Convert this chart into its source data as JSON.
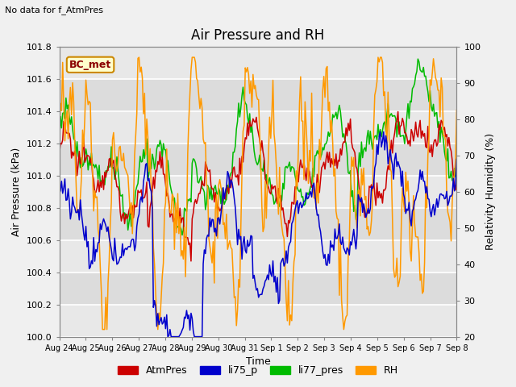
{
  "title": "Air Pressure and RH",
  "subtitle": "No data for f_AtmPres",
  "xlabel": "Time",
  "ylabel_left": "Air Pressure (kPa)",
  "ylabel_right": "Relativity Humidity (%)",
  "annotation": "BC_met",
  "ylim_left": [
    100.0,
    101.8
  ],
  "ylim_right": [
    20,
    100
  ],
  "yticks_left": [
    100.0,
    100.2,
    100.4,
    100.6,
    100.8,
    101.0,
    101.2,
    101.4,
    101.6,
    101.8
  ],
  "yticks_right": [
    20,
    30,
    40,
    50,
    60,
    70,
    80,
    90,
    100
  ],
  "xtick_labels": [
    "Aug 24",
    "Aug 25",
    "Aug 26",
    "Aug 27",
    "Aug 28",
    "Aug 29",
    "Aug 30",
    "Aug 31",
    "Sep 1",
    "Sep 2",
    "Sep 3",
    "Sep 4",
    "Sep 5",
    "Sep 6",
    "Sep 7",
    "Sep 8"
  ],
  "colors": {
    "AtmPres": "#cc0000",
    "li75_p": "#0000cc",
    "li77_pres": "#00bb00",
    "RH": "#ff9900"
  },
  "legend_labels": [
    "AtmPres",
    "li75_p",
    "li77_pres",
    "RH"
  ],
  "plot_bg_color": "#dcdcdc",
  "band_color_light": "#e8e8e8",
  "grid_color": "#ffffff",
  "fig_bg_color": "#f0f0f0",
  "title_fontsize": 12,
  "label_fontsize": 9,
  "tick_fontsize": 8,
  "subtitle_fontsize": 8
}
